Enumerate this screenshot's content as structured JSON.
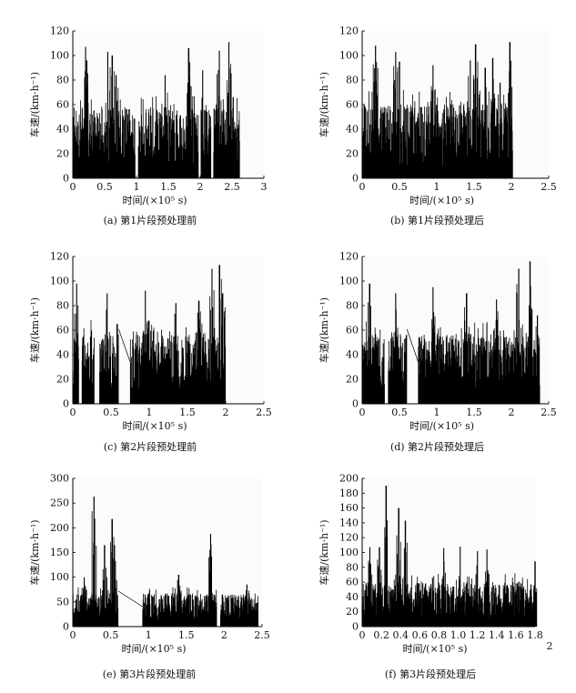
{
  "chart_data": [
    {
      "id": "a",
      "type": "line",
      "caption": "(a) 第1片段预处理前",
      "ylabel": "车速/(km·h⁻¹)",
      "xlabel": "时间/(×10⁵ s)",
      "ylim": [
        0,
        120
      ],
      "yticks": [
        "0",
        "20",
        "40",
        "60",
        "80",
        "100",
        "120"
      ],
      "xlim": [
        0,
        3
      ],
      "xticks": [
        "0",
        "0.5",
        "1",
        "1.5",
        "2",
        "2.5",
        "3"
      ],
      "data_end": 2.62,
      "gaps": [
        [
          0.98,
          1.03
        ],
        [
          1.97,
          2.01
        ],
        [
          2.17,
          2.21
        ]
      ],
      "baseline": 38,
      "peaks": [
        [
          0.2,
          107
        ],
        [
          0.22,
          96
        ],
        [
          0.55,
          103
        ],
        [
          0.62,
          100
        ],
        [
          0.68,
          84
        ],
        [
          1.45,
          84
        ],
        [
          1.82,
          106
        ],
        [
          2.04,
          88
        ],
        [
          2.3,
          104
        ],
        [
          2.45,
          111
        ],
        [
          2.52,
          66
        ]
      ]
    },
    {
      "id": "b",
      "type": "line",
      "caption": "(b) 第1片段预处理后",
      "ylabel": "车速/(km·h⁻¹)",
      "xlabel": "时间/(×10⁵ s)",
      "ylim": [
        0,
        120
      ],
      "yticks": [
        "0",
        "20",
        "40",
        "60",
        "80",
        "100",
        "120"
      ],
      "xlim": [
        0,
        2.5
      ],
      "xticks": [
        "0",
        "0.5",
        "1",
        "1.5",
        "2",
        "2.5"
      ],
      "data_end": 2.02,
      "gaps": [],
      "baseline": 40,
      "peaks": [
        [
          0.18,
          108
        ],
        [
          0.45,
          103
        ],
        [
          0.5,
          95
        ],
        [
          0.95,
          92
        ],
        [
          1.45,
          96
        ],
        [
          1.52,
          109
        ],
        [
          1.65,
          90
        ],
        [
          1.75,
          98
        ],
        [
          1.85,
          78
        ],
        [
          1.98,
          111
        ]
      ]
    },
    {
      "id": "c",
      "type": "line",
      "caption": "(c) 第2片段预处理前",
      "ylabel": "车速/(km·h⁻¹)",
      "xlabel": "时间/(×10⁵ s)",
      "ylim": [
        0,
        120
      ],
      "yticks": [
        "0",
        "20",
        "40",
        "60",
        "80",
        "100",
        "120"
      ],
      "xlim": [
        0,
        2.5
      ],
      "xticks": [
        "0",
        "0.5",
        "1",
        "1.5",
        "2",
        "2.5"
      ],
      "data_end": 2.0,
      "gaps": [
        [
          0.08,
          0.12
        ],
        [
          0.28,
          0.35
        ],
        [
          0.6,
          0.75
        ]
      ],
      "baseline": 38,
      "peaks": [
        [
          0.05,
          98
        ],
        [
          0.45,
          90
        ],
        [
          0.58,
          65
        ],
        [
          0.95,
          92
        ],
        [
          1.35,
          82
        ],
        [
          1.65,
          84
        ],
        [
          1.82,
          110
        ],
        [
          1.92,
          113
        ],
        [
          1.96,
          90
        ]
      ]
    },
    {
      "id": "d",
      "type": "line",
      "caption": "(d) 第2片段预处理后",
      "ylabel": "车速/(km·h⁻¹)",
      "xlabel": "时间/(×10⁵ s)",
      "ylim": [
        0,
        120
      ],
      "yticks": [
        "0",
        "20",
        "40",
        "60",
        "80",
        "100",
        "120"
      ],
      "xlim": [
        0,
        2.5
      ],
      "xticks": [
        "0",
        "0.5",
        "1",
        "1.5",
        "2",
        "2.5"
      ],
      "data_end": 2.38,
      "gaps": [
        [
          0.3,
          0.35
        ],
        [
          0.6,
          0.75
        ]
      ],
      "baseline": 38,
      "peaks": [
        [
          0.1,
          98
        ],
        [
          0.45,
          90
        ],
        [
          0.95,
          95
        ],
        [
          1.4,
          90
        ],
        [
          1.8,
          85
        ],
        [
          2.1,
          110
        ],
        [
          2.25,
          116
        ],
        [
          2.35,
          72
        ]
      ]
    },
    {
      "id": "e",
      "type": "line",
      "caption": "(e) 第3片段预处理前",
      "ylabel": "车速/(km·h⁻¹)",
      "xlabel": "时间/(×10⁵ s)",
      "ylim": [
        0,
        300
      ],
      "yticks": [
        "0",
        "50",
        "100",
        "150",
        "200",
        "250",
        "300"
      ],
      "xlim": [
        0,
        2.5
      ],
      "xticks": [
        "0",
        "0.5",
        "1",
        "1.5",
        "2",
        "2.5"
      ],
      "data_end": 2.45,
      "gaps": [
        [
          0.6,
          0.92
        ],
        [
          1.9,
          1.95
        ]
      ],
      "baseline": 45,
      "peaks": [
        [
          0.15,
          100
        ],
        [
          0.28,
          263
        ],
        [
          0.42,
          165
        ],
        [
          0.52,
          218
        ],
        [
          0.55,
          165
        ],
        [
          1.4,
          105
        ],
        [
          1.82,
          188
        ],
        [
          2.3,
          85
        ]
      ]
    },
    {
      "id": "f",
      "type": "line",
      "caption": "(f) 第3片段预处理后",
      "ylabel": "车速/(km·h⁻¹)",
      "xlabel": "时间/(×10⁵ s)",
      "ylim": [
        0,
        200
      ],
      "yticks": [
        "0",
        "20",
        "40",
        "60",
        "80",
        "100",
        "120",
        "140",
        "160",
        "180",
        "200"
      ],
      "xlim": [
        0,
        1.8
      ],
      "xticks": [
        "0",
        "0.2",
        "0.4",
        "0.6",
        "0.8",
        "1.0",
        "1.2",
        "1.4",
        "1.6",
        "1.8"
      ],
      "extra_tick_label": "2",
      "data_end": 1.82,
      "gaps": [],
      "baseline": 40,
      "peaks": [
        [
          0.08,
          107
        ],
        [
          0.18,
          107
        ],
        [
          0.25,
          190
        ],
        [
          0.38,
          160
        ],
        [
          0.45,
          143
        ],
        [
          0.85,
          106
        ],
        [
          1.02,
          108
        ],
        [
          1.2,
          102
        ],
        [
          1.3,
          104
        ],
        [
          1.8,
          88
        ]
      ]
    }
  ]
}
